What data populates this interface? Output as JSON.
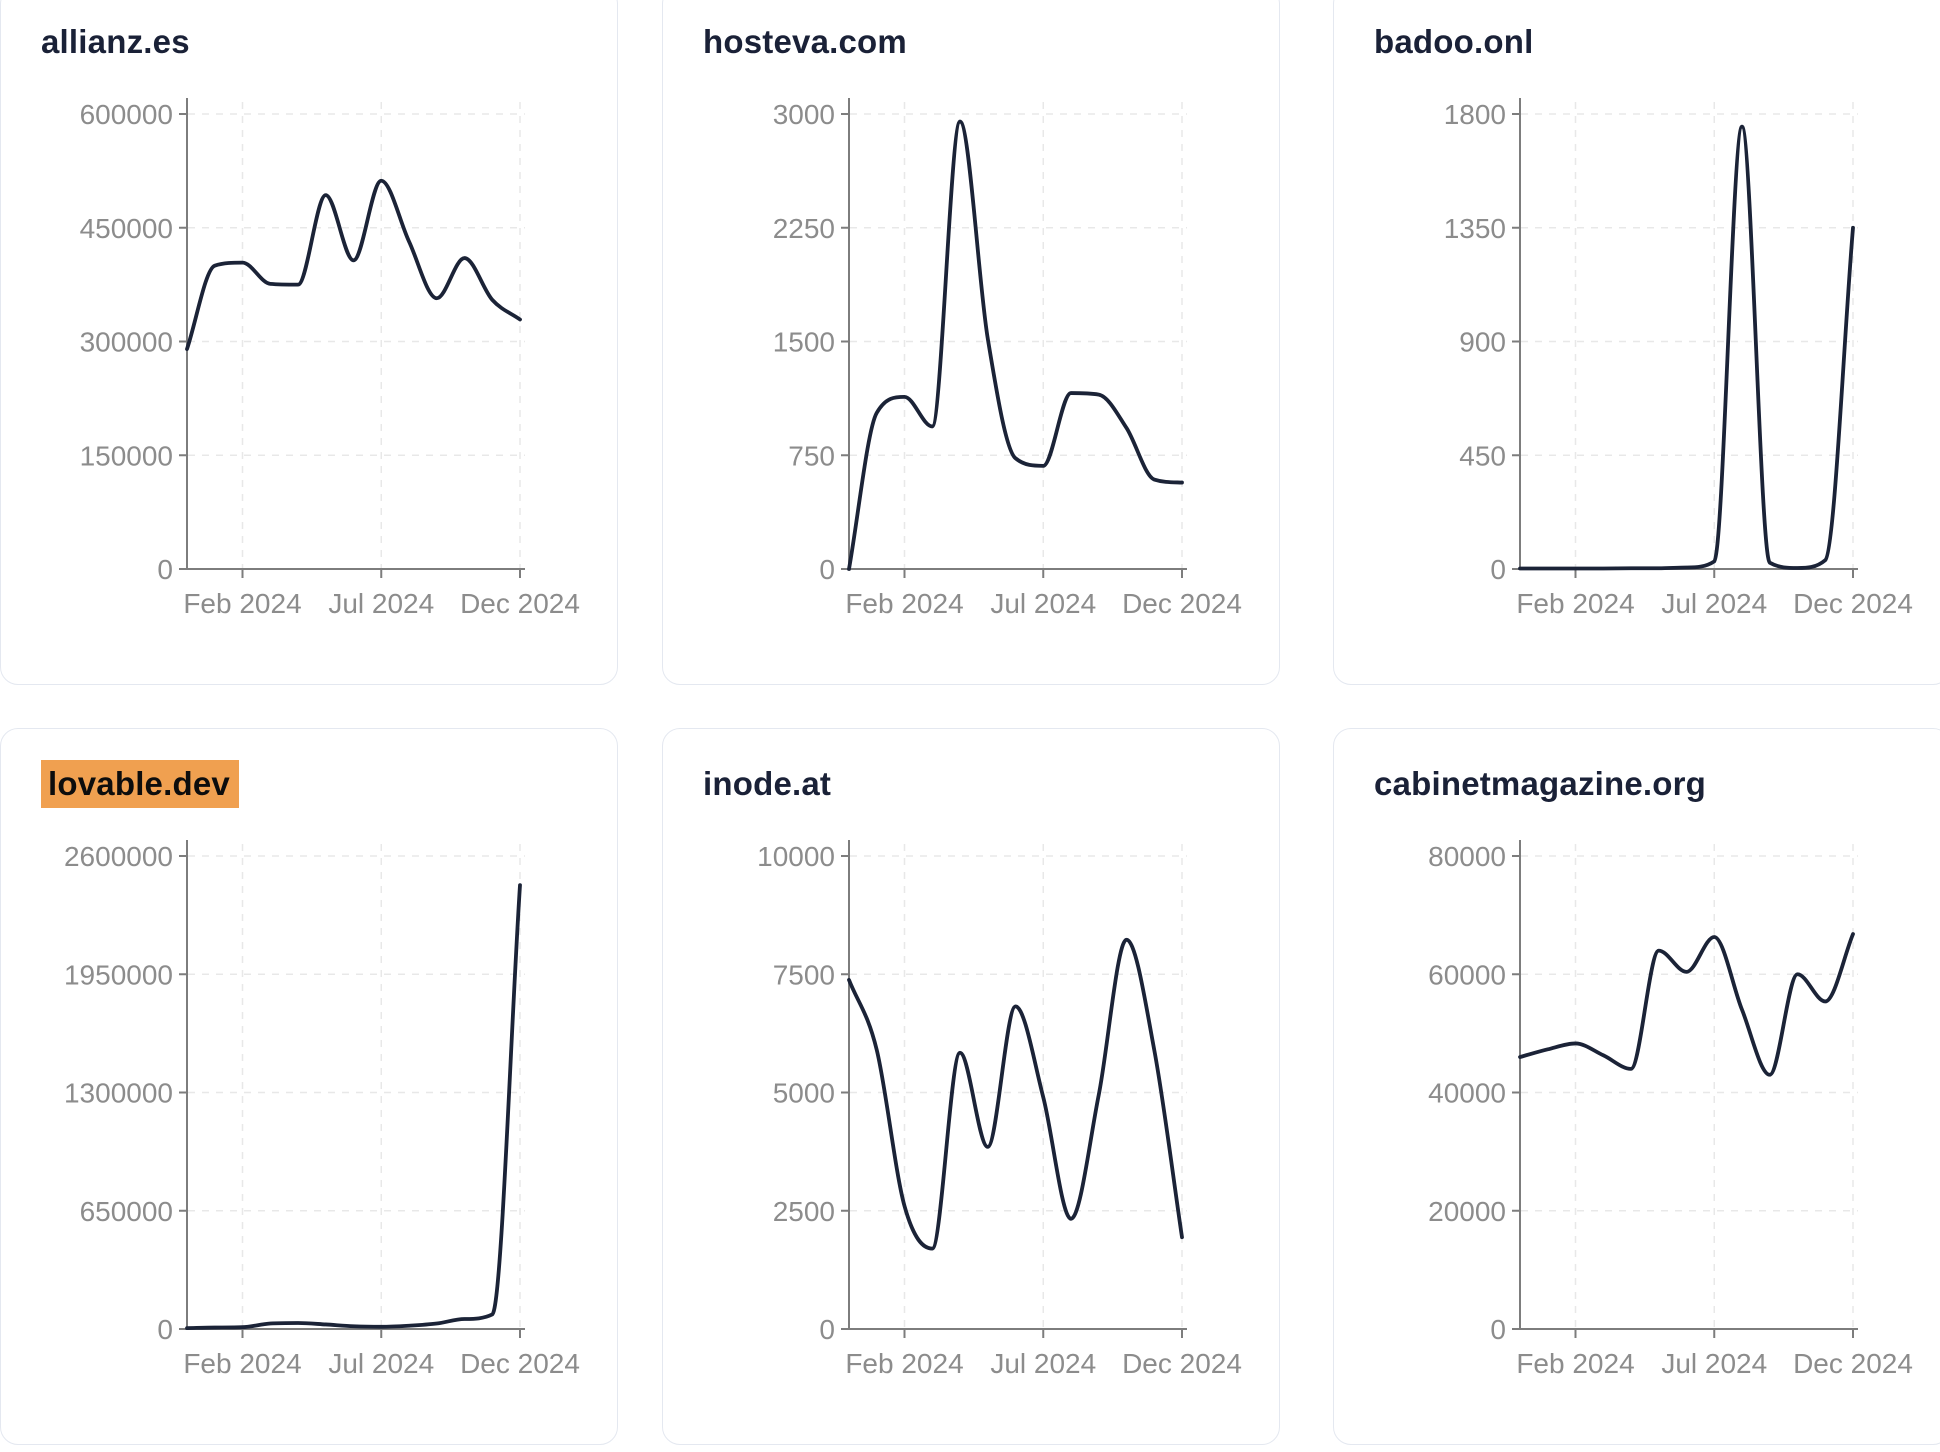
{
  "page": {
    "background_color": "#ffffff",
    "card_background": "#ffffff",
    "card_border_color": "#e4e8f0",
    "title_color": "#1a2137",
    "highlight_color": "#f0a050",
    "highlight_text_color": "#0d0d0d",
    "line_color": "#1b2337",
    "axis_color": "#7d7d7d",
    "tick_label_color": "#8c8c8c",
    "grid_color": "#e8e8e8"
  },
  "chart_data": [
    {
      "type": "line",
      "title": "allianz.es",
      "highlighted": false,
      "x": [
        "Dec 2023",
        "Jan 2024",
        "Feb 2024",
        "Mar 2024",
        "Apr 2024",
        "May 2024",
        "Jun 2024",
        "Jul 2024",
        "Aug 2024",
        "Sep 2024",
        "Oct 2024",
        "Nov 2024",
        "Dec 2024"
      ],
      "values": [
        290000,
        400000,
        404000,
        376000,
        375000,
        493000,
        407000,
        512000,
        432000,
        357000,
        410000,
        355000,
        329000
      ],
      "ylim": [
        0,
        600000
      ],
      "y_tick_labels": [
        "0",
        "150000",
        "300000",
        "450000",
        "600000"
      ],
      "x_tick_labels": [
        "Feb 2024",
        "Jul 2024",
        "Dec 2024"
      ],
      "x_tick_month_index": [
        2,
        7,
        12
      ],
      "grid": "dashed",
      "legend": "none"
    },
    {
      "type": "line",
      "title": "hosteva.com",
      "highlighted": false,
      "x": [
        "Dec 2023",
        "Jan 2024",
        "Feb 2024",
        "Mar 2024",
        "Apr 2024",
        "May 2024",
        "Jun 2024",
        "Jul 2024",
        "Aug 2024",
        "Sep 2024",
        "Oct 2024",
        "Nov 2024",
        "Dec 2024"
      ],
      "values": [
        0,
        1030,
        1135,
        940,
        2950,
        1520,
        730,
        680,
        1160,
        1150,
        930,
        590,
        570
      ],
      "ylim": [
        0,
        3000
      ],
      "y_tick_labels": [
        "0",
        "750",
        "1500",
        "2250",
        "3000"
      ],
      "x_tick_labels": [
        "Feb 2024",
        "Jul 2024",
        "Dec 2024"
      ],
      "x_tick_month_index": [
        2,
        7,
        12
      ],
      "grid": "dashed",
      "legend": "none"
    },
    {
      "type": "line",
      "title": "badoo.onl",
      "highlighted": false,
      "x": [
        "Dec 2023",
        "Jan 2024",
        "Feb 2024",
        "Mar 2024",
        "Apr 2024",
        "May 2024",
        "Jun 2024",
        "Jul 2024",
        "Aug 2024",
        "Sep 2024",
        "Oct 2024",
        "Nov 2024",
        "Dec 2024"
      ],
      "values": [
        2,
        2,
        2,
        2,
        3,
        3,
        6,
        30,
        1750,
        25,
        4,
        35,
        1350
      ],
      "ylim": [
        0,
        1800
      ],
      "y_tick_labels": [
        "0",
        "450",
        "900",
        "1350",
        "1800"
      ],
      "x_tick_labels": [
        "Feb 2024",
        "Jul 2024",
        "Dec 2024"
      ],
      "x_tick_month_index": [
        2,
        7,
        12
      ],
      "grid": "dashed",
      "legend": "none"
    },
    {
      "type": "line",
      "title": "lovable.dev",
      "highlighted": true,
      "x": [
        "Dec 2023",
        "Jan 2024",
        "Feb 2024",
        "Mar 2024",
        "Apr 2024",
        "May 2024",
        "Jun 2024",
        "Jul 2024",
        "Aug 2024",
        "Sep 2024",
        "Oct 2024",
        "Nov 2024",
        "Dec 2024"
      ],
      "values": [
        5000,
        8000,
        10000,
        30000,
        33000,
        25000,
        15000,
        12000,
        18000,
        30000,
        55000,
        80000,
        2440000
      ],
      "ylim": [
        0,
        2600000
      ],
      "y_tick_labels": [
        "0",
        "650000",
        "1300000",
        "1950000",
        "2600000"
      ],
      "x_tick_labels": [
        "Feb 2024",
        "Jul 2024",
        "Dec 2024"
      ],
      "x_tick_month_index": [
        2,
        7,
        12
      ],
      "grid": "dashed",
      "legend": "none"
    },
    {
      "type": "line",
      "title": "inode.at",
      "highlighted": false,
      "x": [
        "Dec 2023",
        "Jan 2024",
        "Feb 2024",
        "Mar 2024",
        "Apr 2024",
        "May 2024",
        "Jun 2024",
        "Jul 2024",
        "Aug 2024",
        "Sep 2024",
        "Oct 2024",
        "Nov 2024",
        "Dec 2024"
      ],
      "values": [
        7380,
        5900,
        2600,
        1700,
        5840,
        3850,
        6820,
        4900,
        2330,
        4950,
        8230,
        5900,
        1940
      ],
      "ylim": [
        0,
        10000
      ],
      "y_tick_labels": [
        "0",
        "2500",
        "5000",
        "7500",
        "10000"
      ],
      "x_tick_labels": [
        "Feb 2024",
        "Jul 2024",
        "Dec 2024"
      ],
      "x_tick_month_index": [
        2,
        7,
        12
      ],
      "grid": "dashed",
      "legend": "none"
    },
    {
      "type": "line",
      "title": "cabinetmagazine.org",
      "highlighted": false,
      "x": [
        "Dec 2023",
        "Jan 2024",
        "Feb 2024",
        "Mar 2024",
        "Apr 2024",
        "May 2024",
        "Jun 2024",
        "Jul 2024",
        "Aug 2024",
        "Sep 2024",
        "Oct 2024",
        "Nov 2024",
        "Dec 2024"
      ],
      "values": [
        46000,
        47300,
        48300,
        46300,
        44000,
        64000,
        60400,
        66300,
        54000,
        43000,
        60000,
        55400,
        66800
      ],
      "ylim": [
        0,
        80000
      ],
      "y_tick_labels": [
        "0",
        "20000",
        "40000",
        "60000",
        "80000"
      ],
      "x_tick_labels": [
        "Feb 2024",
        "Jul 2024",
        "Dec 2024"
      ],
      "x_tick_month_index": [
        2,
        7,
        12
      ],
      "grid": "dashed",
      "legend": "none"
    }
  ]
}
